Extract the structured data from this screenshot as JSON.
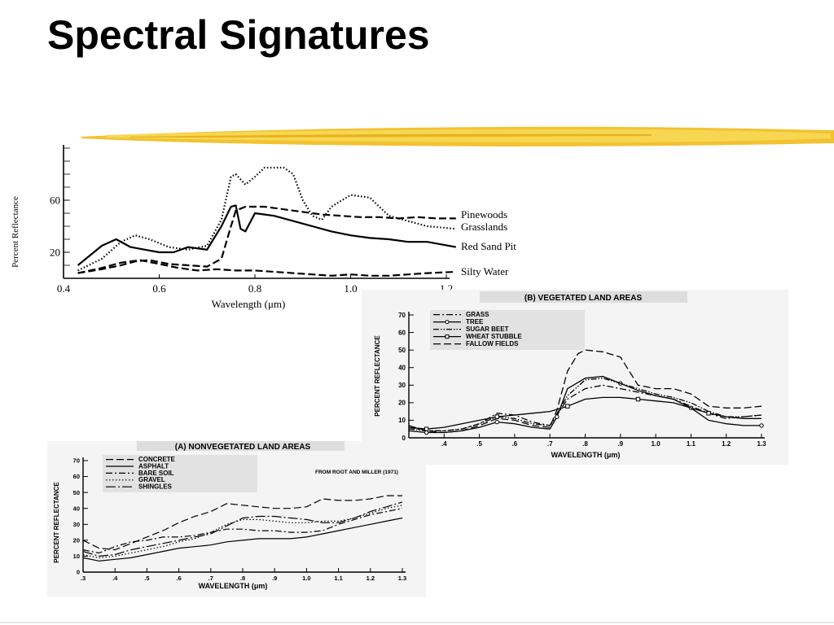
{
  "slide": {
    "title": "Spectral Signatures"
  },
  "chart_data": [
    {
      "type": "line",
      "xlabel": "Wavelength (μm)",
      "ylabel": "Percent Reflectance",
      "xlim": [
        0.4,
        1.2
      ],
      "ylim": [
        0,
        100
      ],
      "x_ticks": [
        0.4,
        0.6,
        0.8,
        1.0,
        1.2
      ],
      "x_tick_labels": [
        "0.4",
        "0.6",
        "0.8",
        "1.0",
        "1.2"
      ],
      "y_ticks": [
        20,
        60
      ],
      "y_tick_labels": [
        "20",
        "60"
      ],
      "grid": false,
      "legend": "end-of-line labels at right",
      "series": [
        {
          "name": "Pinewoods",
          "style": "dash-long",
          "x": [
            0.43,
            0.48,
            0.52,
            0.55,
            0.58,
            0.62,
            0.66,
            0.7,
            0.73,
            0.75,
            0.76,
            0.78,
            0.82,
            0.86,
            0.9,
            0.94,
            0.98,
            1.02,
            1.06,
            1.1,
            1.14,
            1.18,
            1.22
          ],
          "y": [
            4,
            7,
            10,
            13,
            14,
            11,
            10,
            9,
            15,
            40,
            52,
            55,
            55,
            53,
            51,
            49,
            48,
            47,
            47,
            46,
            47,
            46,
            46
          ]
        },
        {
          "name": "Grasslands",
          "style": "dotted",
          "x": [
            0.43,
            0.48,
            0.52,
            0.55,
            0.58,
            0.62,
            0.66,
            0.7,
            0.73,
            0.75,
            0.76,
            0.78,
            0.8,
            0.82,
            0.86,
            0.88,
            0.9,
            0.92,
            0.94,
            0.96,
            1.0,
            1.04,
            1.08,
            1.12,
            1.16,
            1.22
          ],
          "y": [
            6,
            15,
            28,
            33,
            30,
            24,
            22,
            25,
            45,
            78,
            80,
            72,
            78,
            85,
            85,
            80,
            60,
            48,
            45,
            55,
            64,
            62,
            48,
            44,
            40,
            38
          ]
        },
        {
          "name": "Red Sand Pit",
          "style": "solid",
          "x": [
            0.43,
            0.48,
            0.51,
            0.54,
            0.57,
            0.6,
            0.63,
            0.66,
            0.7,
            0.73,
            0.75,
            0.76,
            0.77,
            0.78,
            0.8,
            0.84,
            0.88,
            0.92,
            0.96,
            1.0,
            1.04,
            1.08,
            1.12,
            1.16,
            1.22
          ],
          "y": [
            10,
            25,
            30,
            24,
            22,
            20,
            20,
            24,
            22,
            40,
            55,
            56,
            38,
            36,
            50,
            48,
            44,
            40,
            36,
            33,
            31,
            30,
            28,
            28,
            24
          ]
        },
        {
          "name": "Silty Water",
          "style": "dash-long",
          "x": [
            0.43,
            0.48,
            0.52,
            0.56,
            0.6,
            0.64,
            0.68,
            0.72,
            0.76,
            0.8,
            0.84,
            0.88,
            0.92,
            0.96,
            1.0,
            1.04,
            1.08,
            1.12,
            1.16,
            1.22
          ],
          "y": [
            4,
            8,
            12,
            14,
            11,
            8,
            6,
            7,
            6,
            6,
            5,
            4,
            3,
            2,
            3,
            2,
            2,
            3,
            4,
            5
          ]
        }
      ],
      "line_labels": [
        "Pinewoods",
        "Grasslands",
        "Red Sand Pit",
        "Silty Water"
      ]
    },
    {
      "type": "line",
      "title": "(B) VEGETATED LAND AREAS",
      "xlabel": "WAVELENGTH (μm)",
      "ylabel": "PERCENT REFLECTANCE",
      "xlim": [
        0.3,
        1.3
      ],
      "ylim": [
        0,
        70
      ],
      "x_tick_labels": [
        ".4",
        ".5",
        ".6",
        ".7",
        ".8",
        ".9",
        "1.0",
        "1.1",
        "1.2",
        "1.3"
      ],
      "x_ticks": [
        0.4,
        0.5,
        0.6,
        0.7,
        0.8,
        0.9,
        1.0,
        1.1,
        1.2,
        1.3
      ],
      "y_tick_labels": [
        "0",
        "10",
        "20",
        "30",
        "40",
        "50",
        "60",
        "70"
      ],
      "y_ticks": [
        0,
        10,
        20,
        30,
        40,
        50,
        60,
        70
      ],
      "legend": "top-left",
      "series": [
        {
          "name": "GRASS",
          "style": "dash-dot",
          "x": [
            0.3,
            0.35,
            0.4,
            0.45,
            0.5,
            0.55,
            0.6,
            0.65,
            0.7,
            0.75,
            0.8,
            0.85,
            0.9,
            0.95,
            1.0,
            1.05,
            1.1,
            1.15,
            1.2,
            1.25,
            1.3
          ],
          "y": [
            6,
            4,
            4,
            5,
            8,
            14,
            13,
            9,
            7,
            22,
            28,
            30,
            28,
            26,
            24,
            22,
            18,
            14,
            11,
            12,
            13
          ]
        },
        {
          "name": "TREE",
          "style": "solid-circle",
          "x": [
            0.3,
            0.35,
            0.4,
            0.45,
            0.5,
            0.55,
            0.6,
            0.65,
            0.7,
            0.72,
            0.75,
            0.8,
            0.85,
            0.9,
            0.95,
            1.0,
            1.05,
            1.1,
            1.15,
            1.2,
            1.25,
            1.3
          ],
          "y": [
            4,
            3,
            3,
            4,
            6,
            9,
            8,
            6,
            5,
            12,
            28,
            34,
            35,
            31,
            27,
            24,
            22,
            17,
            10,
            8,
            7,
            7
          ]
        },
        {
          "name": "SUGAR BEET",
          "style": "dash-dot-dot",
          "x": [
            0.3,
            0.35,
            0.4,
            0.45,
            0.5,
            0.55,
            0.6,
            0.65,
            0.7,
            0.75,
            0.8,
            0.85,
            0.9,
            0.95,
            1.0,
            1.05,
            1.1,
            1.15,
            1.2,
            1.25,
            1.3
          ],
          "y": [
            5,
            4,
            4,
            5,
            8,
            12,
            11,
            8,
            7,
            24,
            33,
            34,
            31,
            28,
            25,
            23,
            20,
            15,
            12,
            12,
            13
          ]
        },
        {
          "name": "WHEAT STUBBLE",
          "style": "solid-square",
          "x": [
            0.3,
            0.35,
            0.4,
            0.45,
            0.5,
            0.55,
            0.6,
            0.65,
            0.7,
            0.75,
            0.8,
            0.85,
            0.9,
            0.95,
            1.0,
            1.05,
            1.1,
            1.15,
            1.2,
            1.25,
            1.3
          ],
          "y": [
            6,
            5,
            6,
            8,
            10,
            12,
            13,
            14,
            15,
            18,
            22,
            23,
            23,
            22,
            21,
            20,
            17,
            14,
            12,
            11,
            11
          ]
        },
        {
          "name": "FALLOW FIELDS",
          "style": "dash-long",
          "x": [
            0.3,
            0.35,
            0.4,
            0.45,
            0.5,
            0.55,
            0.6,
            0.65,
            0.7,
            0.72,
            0.75,
            0.78,
            0.8,
            0.85,
            0.9,
            0.95,
            1.0,
            1.05,
            1.1,
            1.15,
            1.2,
            1.25,
            1.3
          ],
          "y": [
            7,
            4,
            3,
            4,
            7,
            11,
            10,
            7,
            6,
            16,
            38,
            48,
            50,
            49,
            46,
            30,
            28,
            28,
            25,
            18,
            17,
            17,
            18
          ]
        }
      ]
    },
    {
      "type": "line",
      "title": "(A) NONVEGETATED LAND AREAS",
      "annotation": "FROM ROOT AND MILLER (1971)",
      "xlabel": "WAVELENGTH (μm)",
      "ylabel": "PERCENT REFLECTANCE",
      "xlim": [
        0.3,
        1.3
      ],
      "ylim": [
        0,
        70
      ],
      "x_tick_labels": [
        ".3",
        ".4",
        ".5",
        ".6",
        ".7",
        ".8",
        ".9",
        "1.0",
        "1.1",
        "1.2",
        "1.3"
      ],
      "x_ticks": [
        0.3,
        0.4,
        0.5,
        0.6,
        0.7,
        0.8,
        0.9,
        1.0,
        1.1,
        1.2,
        1.3
      ],
      "y_tick_labels": [
        "0",
        "10",
        "20",
        "30",
        "40",
        "50",
        "60",
        "70"
      ],
      "y_ticks": [
        0,
        10,
        20,
        30,
        40,
        50,
        60,
        70
      ],
      "legend": "top-left",
      "series": [
        {
          "name": "CONCRETE",
          "style": "dash-long",
          "x": [
            0.3,
            0.35,
            0.4,
            0.45,
            0.5,
            0.55,
            0.6,
            0.65,
            0.7,
            0.75,
            0.8,
            0.85,
            0.9,
            0.95,
            1.0,
            1.05,
            1.1,
            1.15,
            1.2,
            1.25,
            1.3
          ],
          "y": [
            20,
            15,
            14,
            18,
            22,
            26,
            31,
            35,
            38,
            43,
            42,
            41,
            40,
            40,
            41,
            46,
            45,
            45,
            46,
            48,
            48
          ]
        },
        {
          "name": "ASPHALT",
          "style": "solid",
          "x": [
            0.3,
            0.35,
            0.4,
            0.45,
            0.5,
            0.55,
            0.6,
            0.65,
            0.7,
            0.75,
            0.8,
            0.85,
            0.9,
            0.95,
            1.0,
            1.05,
            1.1,
            1.15,
            1.2,
            1.25,
            1.3
          ],
          "y": [
            9,
            7,
            8,
            9,
            11,
            13,
            15,
            16,
            17,
            19,
            20,
            21,
            21,
            21,
            22,
            24,
            26,
            28,
            30,
            32,
            34
          ]
        },
        {
          "name": "BARE SOIL",
          "style": "dash-dot",
          "x": [
            0.3,
            0.35,
            0.4,
            0.45,
            0.5,
            0.55,
            0.6,
            0.65,
            0.7,
            0.75,
            0.8,
            0.85,
            0.9,
            0.95,
            1.0,
            1.05,
            1.1,
            1.15,
            1.2,
            1.25,
            1.3
          ],
          "y": [
            14,
            12,
            16,
            19,
            20,
            22,
            22,
            23,
            25,
            27,
            27,
            26,
            26,
            25,
            25,
            26,
            30,
            33,
            36,
            38,
            40
          ]
        },
        {
          "name": "GRAVEL",
          "style": "dotted",
          "x": [
            0.3,
            0.35,
            0.4,
            0.45,
            0.5,
            0.55,
            0.6,
            0.65,
            0.7,
            0.75,
            0.8,
            0.85,
            0.9,
            0.95,
            1.0,
            1.05,
            1.1,
            1.15,
            1.2,
            1.25,
            1.3
          ],
          "y": [
            11,
            9,
            10,
            12,
            14,
            16,
            19,
            21,
            25,
            30,
            33,
            33,
            32,
            31,
            31,
            32,
            32,
            34,
            37,
            40,
            42
          ]
        },
        {
          "name": "SHINGLES",
          "style": "dash-dot-long",
          "x": [
            0.3,
            0.35,
            0.4,
            0.45,
            0.5,
            0.55,
            0.6,
            0.65,
            0.7,
            0.75,
            0.8,
            0.85,
            0.9,
            0.95,
            1.0,
            1.05,
            1.1,
            1.15,
            1.2,
            1.25,
            1.3
          ],
          "y": [
            13,
            10,
            11,
            14,
            16,
            18,
            20,
            22,
            24,
            29,
            34,
            35,
            35,
            34,
            33,
            31,
            31,
            34,
            38,
            41,
            44
          ]
        }
      ]
    }
  ]
}
